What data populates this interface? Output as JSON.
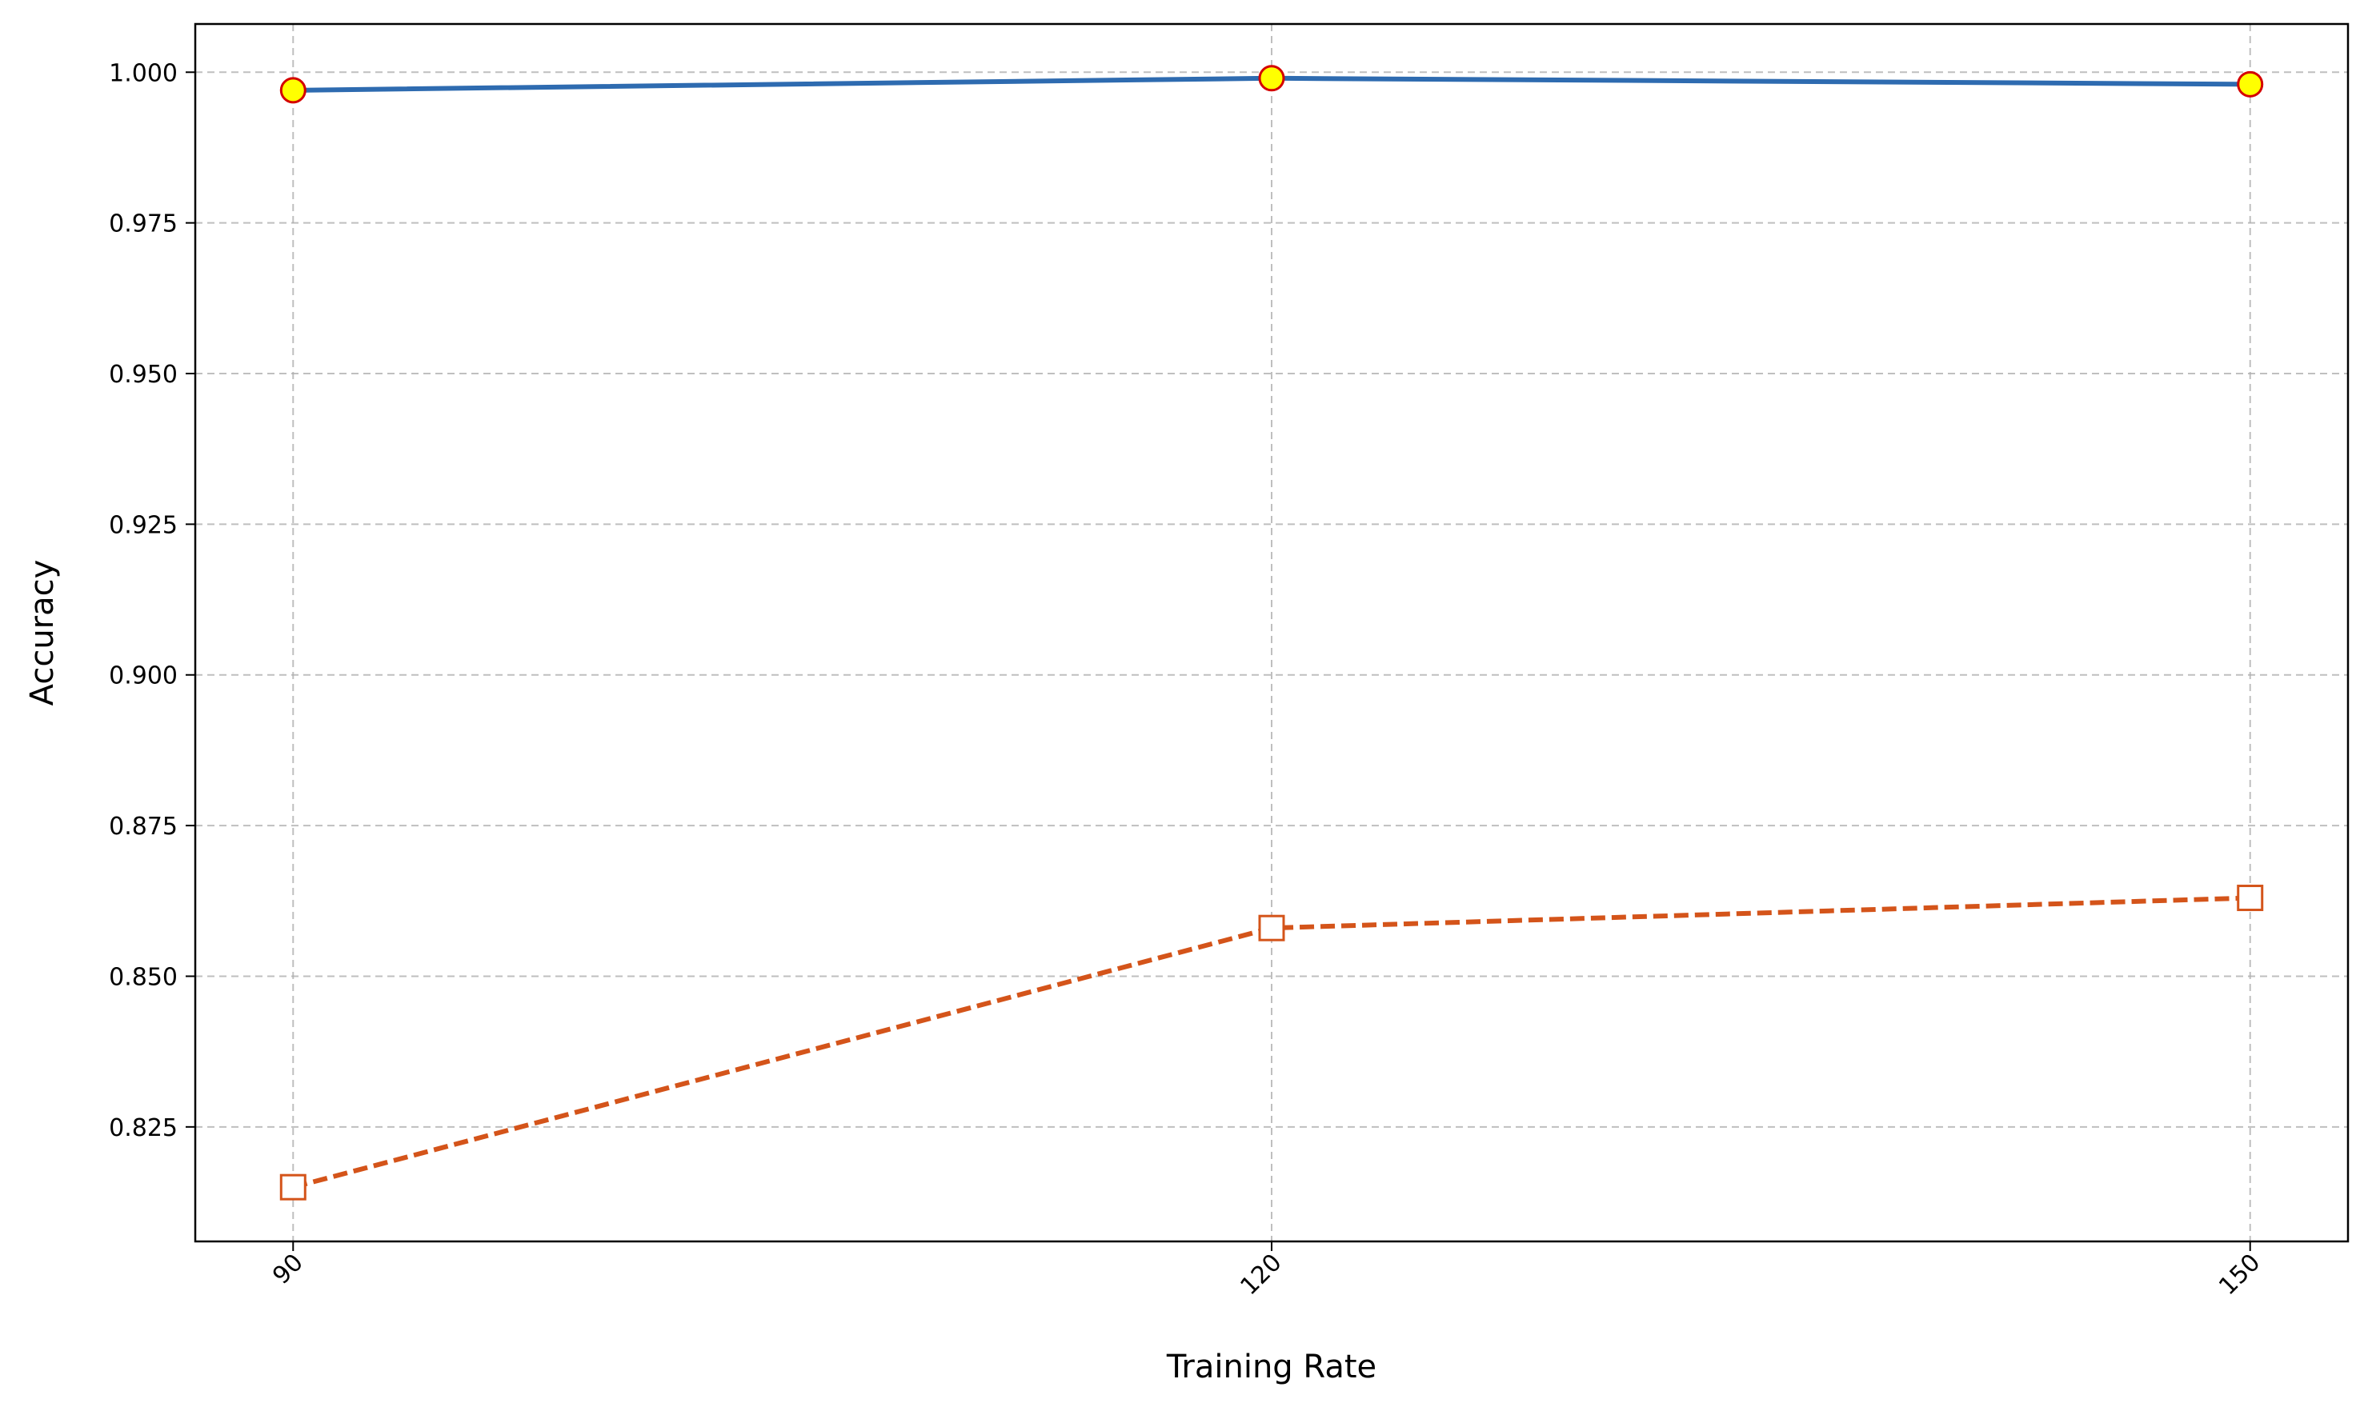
{
  "chart_data": {
    "type": "line",
    "title": "",
    "xlabel": "Training Rate",
    "ylabel": "Accuracy",
    "x": [
      90,
      120,
      150
    ],
    "x_tick_labels": [
      "90",
      "120",
      "150"
    ],
    "x_tick_rotation_deg": 45,
    "y_ticks": [
      0.825,
      0.85,
      0.875,
      0.9,
      0.925,
      0.95,
      0.975,
      1.0
    ],
    "y_tick_labels": [
      "0.825",
      "0.850",
      "0.875",
      "0.900",
      "0.925",
      "0.950",
      "0.975",
      "1.000"
    ],
    "xlim": [
      87,
      153
    ],
    "ylim": [
      0.806,
      1.008
    ],
    "grid": true,
    "grid_style": "dashed",
    "legend": "none",
    "series": [
      {
        "values": [
          0.997,
          0.999,
          0.998
        ],
        "line_color": "#2e6bb0",
        "line_style": "solid",
        "marker": "circle",
        "marker_fill": "#ffff00",
        "marker_edge": "#d40000"
      },
      {
        "values": [
          0.815,
          0.858,
          0.863
        ],
        "line_color": "#d4541a",
        "line_style": "dashed",
        "marker": "square",
        "marker_fill": "#ffffff",
        "marker_edge": "#d4541a"
      }
    ]
  }
}
